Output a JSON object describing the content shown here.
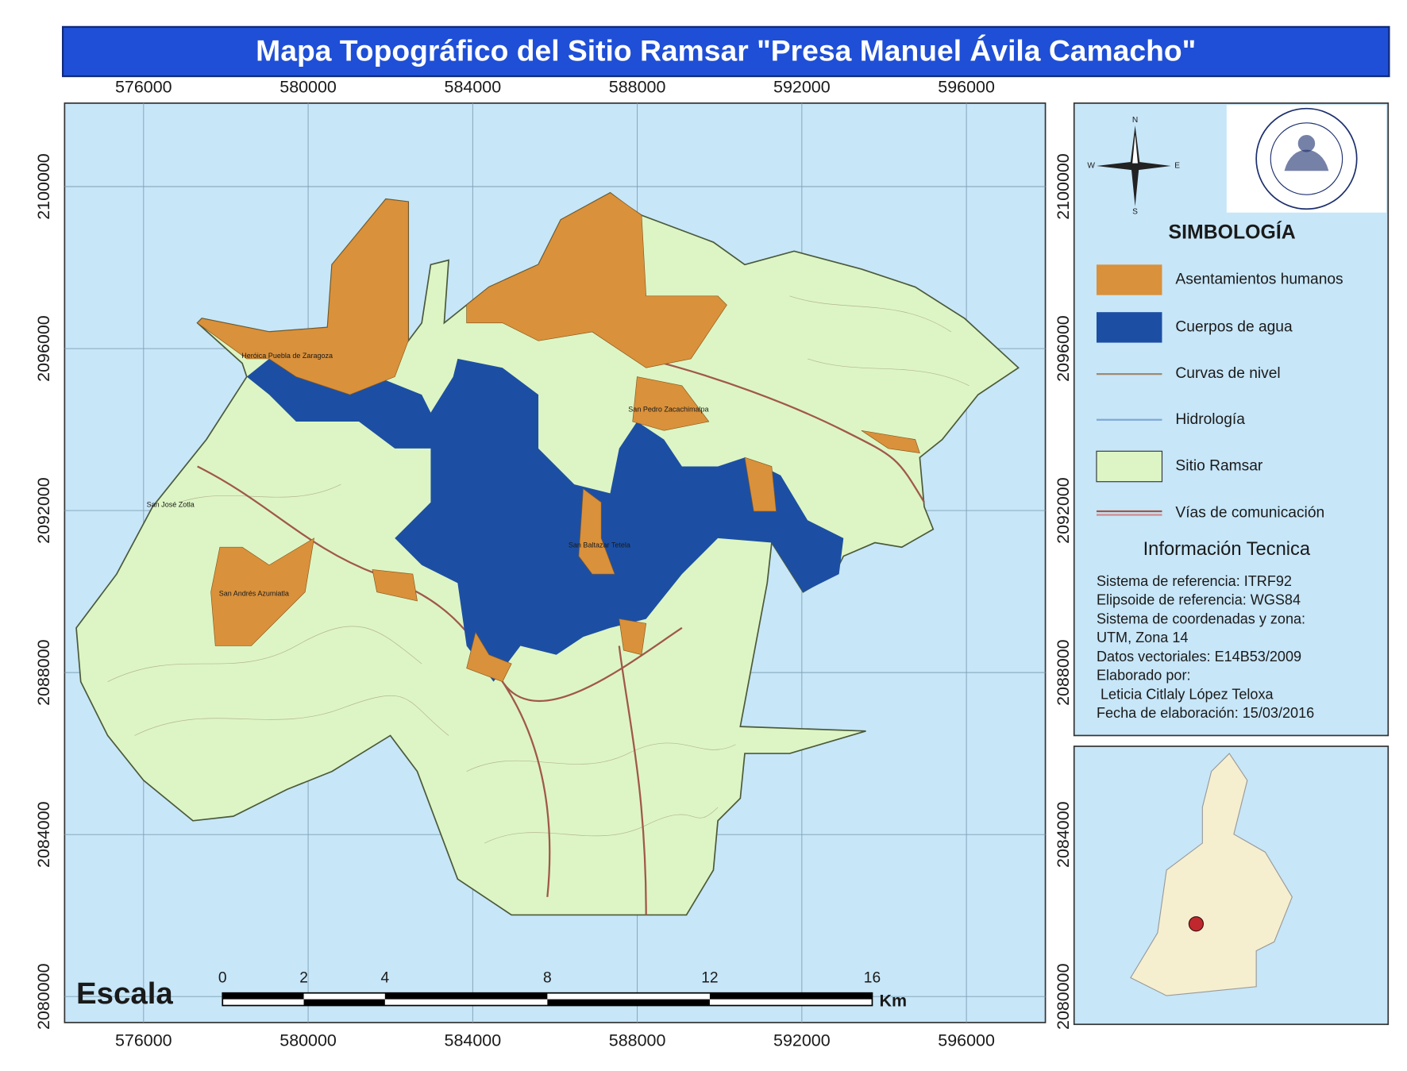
{
  "title": "Mapa Topográfico del Sitio Ramsar \"Presa Manuel Ávila Camacho\"",
  "x_coords": [
    "576000",
    "580000",
    "584000",
    "588000",
    "592000",
    "596000"
  ],
  "y_coords": [
    "2100000",
    "2096000",
    "2092000",
    "2088000",
    "2084000",
    "2080000"
  ],
  "compass": {
    "n": "N",
    "s": "S",
    "e": "E",
    "w": "W"
  },
  "legend": {
    "title": "SIMBOLOGÍA",
    "items": [
      "Asentamientos humanos",
      "Cuerpos de agua",
      "Curvas de nivel",
      "Hidrología",
      "Sitio Ramsar",
      "Vías de comunicación"
    ]
  },
  "info": {
    "title": "Información Tecnica",
    "lines": [
      "Sistema de referencia: ITRF92",
      "Elipsoide de referencia: WGS84",
      "Sistema de coordenadas y zona:",
      "UTM, Zona 14",
      "Datos vectoriales: E14B53/2009",
      "Elaborado por:",
      " Leticia Citlaly López Teloxa",
      "Fecha de elaboración: 15/03/2016"
    ]
  },
  "places": [
    "Heróica Puebla de Zaragoza",
    "San Pedro Zacachimalpa",
    "San Andrés Azumiatla",
    "San Baltazar Tetela",
    "San José Zotla"
  ],
  "scale": {
    "label": "Escala",
    "ticks": [
      0,
      2,
      4,
      8,
      12,
      16
    ],
    "unit": "Km"
  }
}
